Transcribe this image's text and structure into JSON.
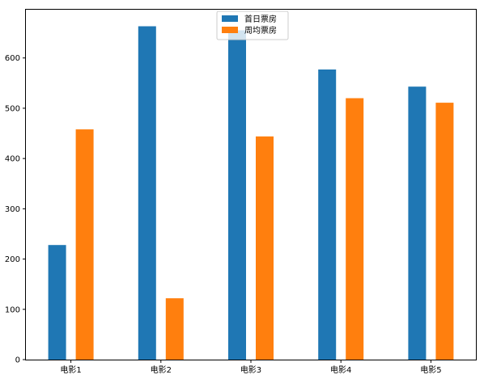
{
  "chart_data": {
    "type": "bar",
    "categories": [
      "电影1",
      "电影2",
      "电影3",
      "电影4",
      "电影5"
    ],
    "series": [
      {
        "name": "首日票房",
        "color": "#1f77b4",
        "values": [
          228,
          663,
          655,
          577,
          543
        ]
      },
      {
        "name": "周均票房",
        "color": "#ff7f0e",
        "values": [
          458,
          122,
          444,
          520,
          511
        ]
      }
    ],
    "ylim": [
      0,
      696
    ],
    "yticks": [
      0,
      100,
      200,
      300,
      400,
      500,
      600
    ],
    "ytick_labels": [
      "0",
      "100",
      "200",
      "300",
      "400",
      "500",
      "600"
    ],
    "grid": false,
    "legend_position": "top-center"
  }
}
